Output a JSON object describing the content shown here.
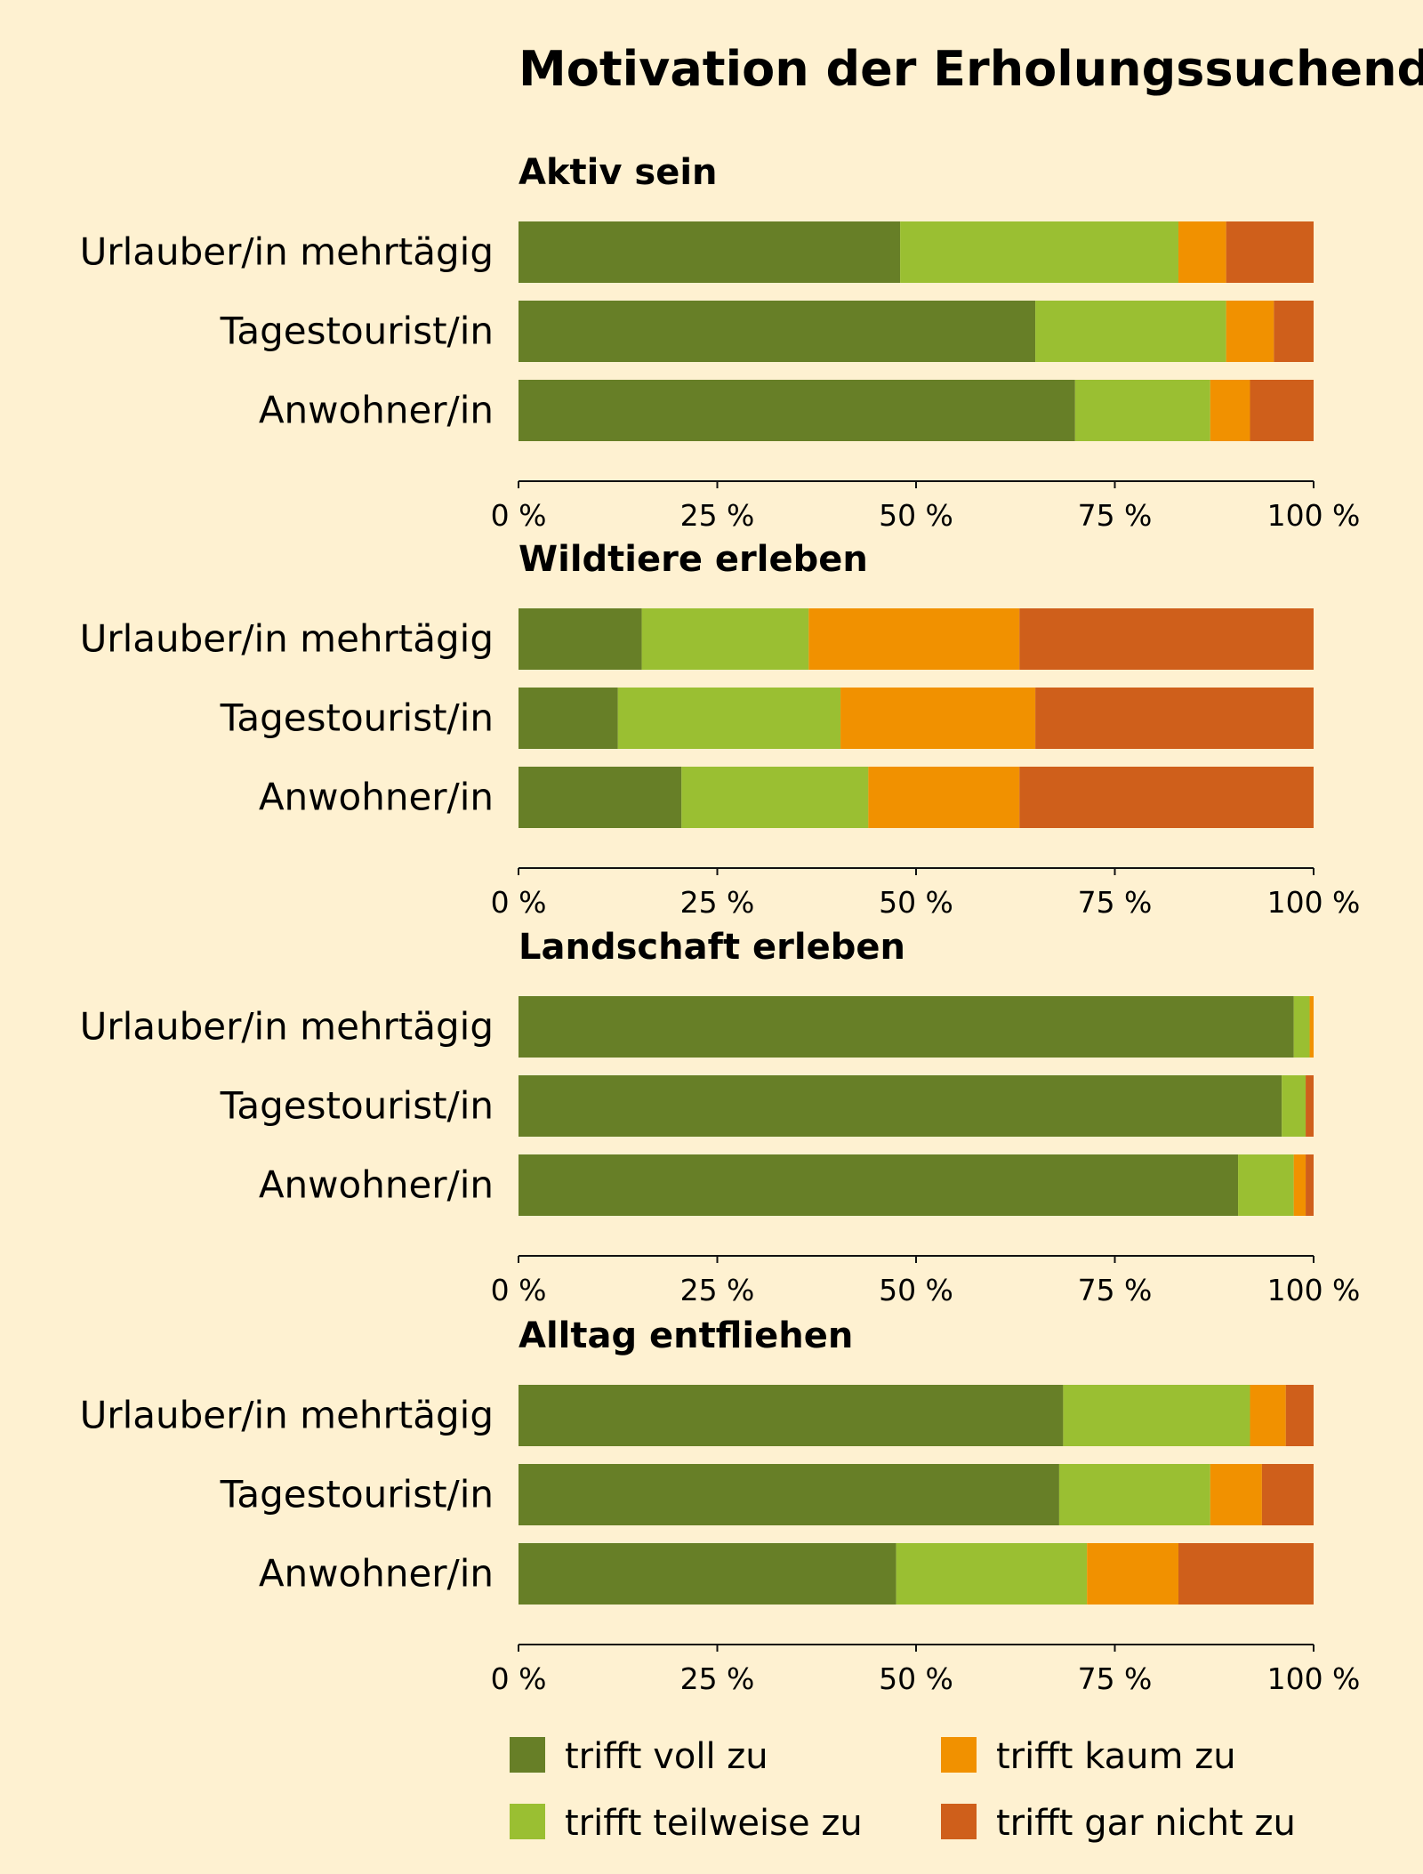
{
  "chart_data": {
    "type": "bar",
    "orientation": "horizontal",
    "stacked": true,
    "title": "Motivation der Erholungssuchenden",
    "categories": [
      "Urlauber/in mehrtägig",
      "Tagestourist/in",
      "Anwohner/in"
    ],
    "series_names": [
      "trifft voll zu",
      "trifft teilweise zu",
      "trifft kaum zu",
      "trifft gar nicht zu"
    ],
    "colors": [
      "#677f27",
      "#9abf32",
      "#f19100",
      "#cf5f1b"
    ],
    "xlim": [
      0,
      100
    ],
    "ticks": [
      0,
      25,
      50,
      75,
      100
    ],
    "tick_labels": [
      "0 %",
      "25 %",
      "50 %",
      "75 %",
      "100 %"
    ],
    "legend_position": "bottom",
    "panels": [
      {
        "title": "Aktiv sein",
        "rows": [
          [
            48,
            35,
            6,
            11
          ],
          [
            65,
            24,
            6,
            5
          ],
          [
            70,
            17,
            5,
            8
          ]
        ]
      },
      {
        "title": "Wildtiere erleben",
        "rows": [
          [
            15.5,
            21,
            26.5,
            37
          ],
          [
            12.5,
            28,
            24.5,
            35
          ],
          [
            20.5,
            23.5,
            19,
            37
          ]
        ]
      },
      {
        "title": "Landschaft erleben",
        "rows": [
          [
            97.5,
            2,
            0.5,
            0
          ],
          [
            96,
            3,
            0,
            1
          ],
          [
            90.5,
            7,
            1.5,
            1
          ]
        ]
      },
      {
        "title": "Alltag entfliehen",
        "rows": [
          [
            68.5,
            23.5,
            4.5,
            3.5
          ],
          [
            68,
            19,
            6.5,
            6.5
          ],
          [
            47.5,
            24,
            11.5,
            17
          ]
        ]
      }
    ]
  }
}
